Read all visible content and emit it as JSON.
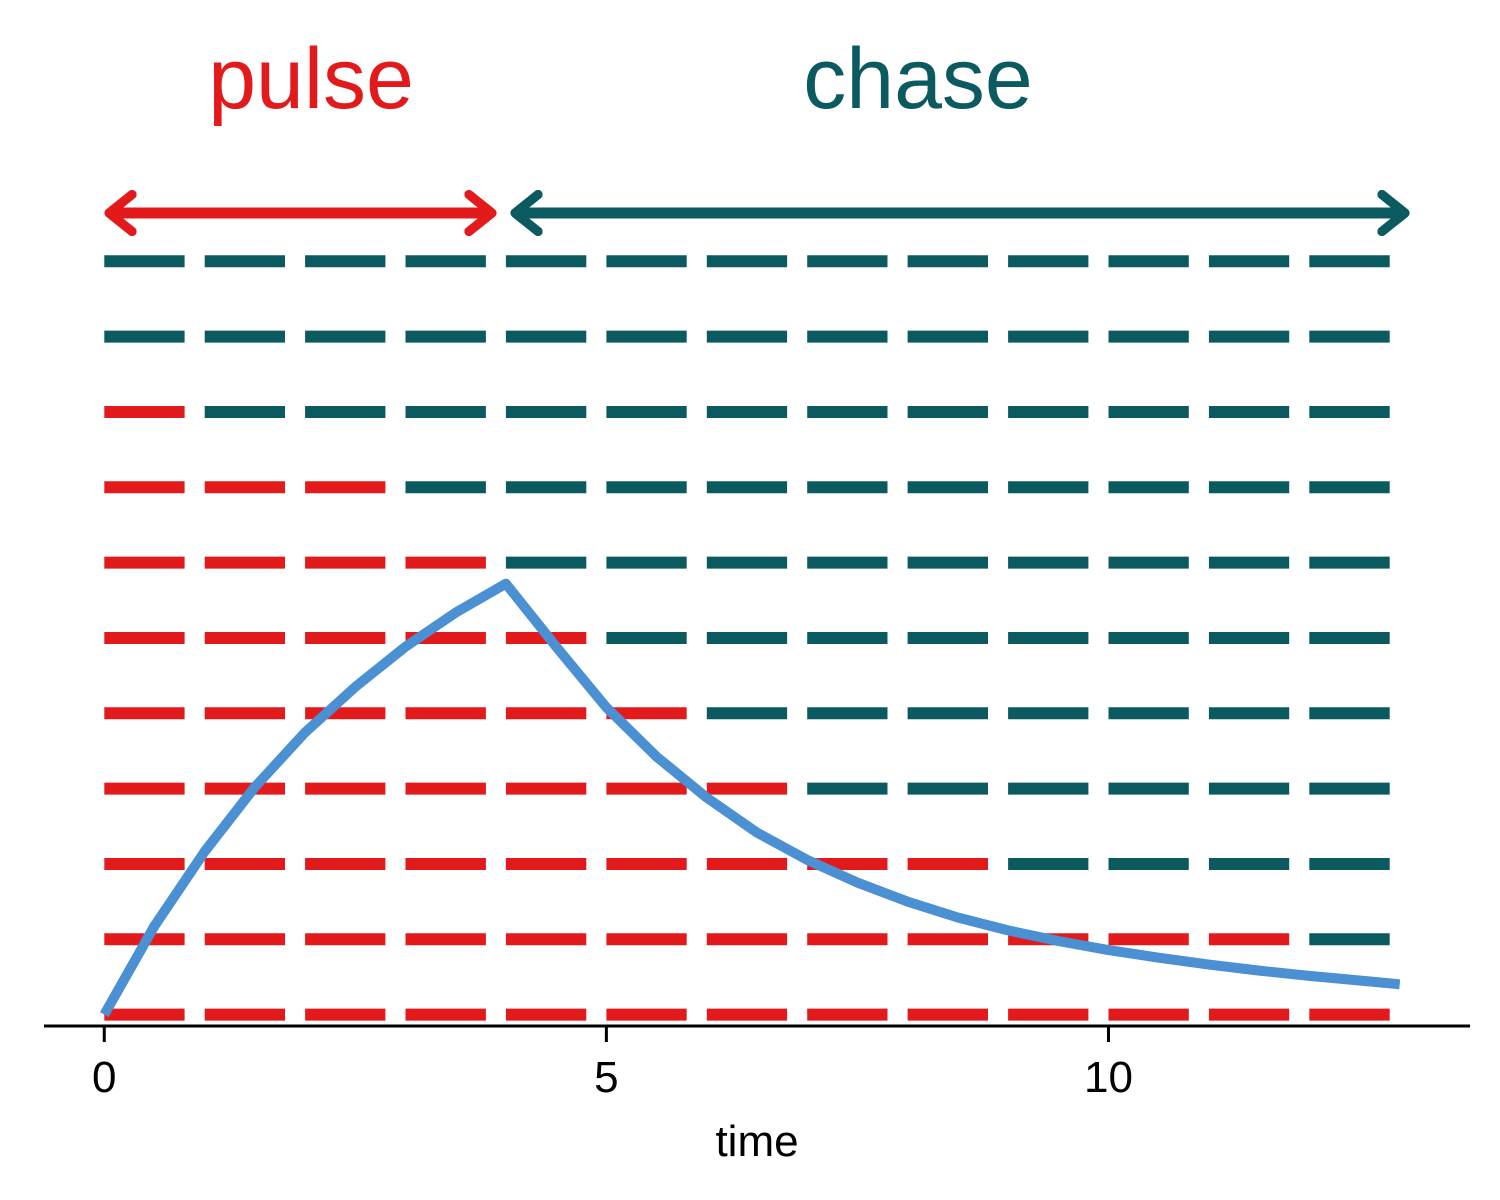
{
  "phases": [
    {
      "label": "pulse",
      "color": "#e31a1c",
      "start": 0,
      "end": 4
    },
    {
      "label": "chase",
      "color": "#0b5a60",
      "start": 4,
      "end": 13
    }
  ],
  "chart_data": {
    "type": "line",
    "xlabel": "time",
    "ylabel": "",
    "xlim": [
      -0.6,
      13.6
    ],
    "ylim": [
      -0.15,
      10.0
    ],
    "x_ticks": [
      {
        "value": 0,
        "label": "0"
      },
      {
        "value": 5,
        "label": "5"
      },
      {
        "value": 10,
        "label": "10"
      }
    ],
    "grid": false,
    "legend": "none",
    "levels": 11,
    "labeled_color": "#e31a1c",
    "unlabeled_color": "#0b5a60",
    "labeled_until": [
      13,
      12,
      9,
      7,
      6,
      5,
      4,
      3,
      1,
      0,
      0
    ],
    "curve_color": "#4a90d2",
    "curve": {
      "x": [
        0,
        0.5,
        1,
        1.5,
        2,
        2.5,
        3,
        3.5,
        4,
        4.5,
        5,
        5.5,
        6,
        6.5,
        7,
        7.5,
        8,
        8.5,
        9,
        9.5,
        10,
        10.5,
        11,
        11.5,
        12,
        12.5,
        12.9
      ],
      "y": [
        0.0,
        1.17,
        2.15,
        3.0,
        3.72,
        4.32,
        4.85,
        5.3,
        5.68,
        4.85,
        4.05,
        3.4,
        2.86,
        2.4,
        2.04,
        1.74,
        1.49,
        1.28,
        1.11,
        0.97,
        0.85,
        0.75,
        0.66,
        0.58,
        0.51,
        0.45,
        0.4
      ]
    }
  }
}
